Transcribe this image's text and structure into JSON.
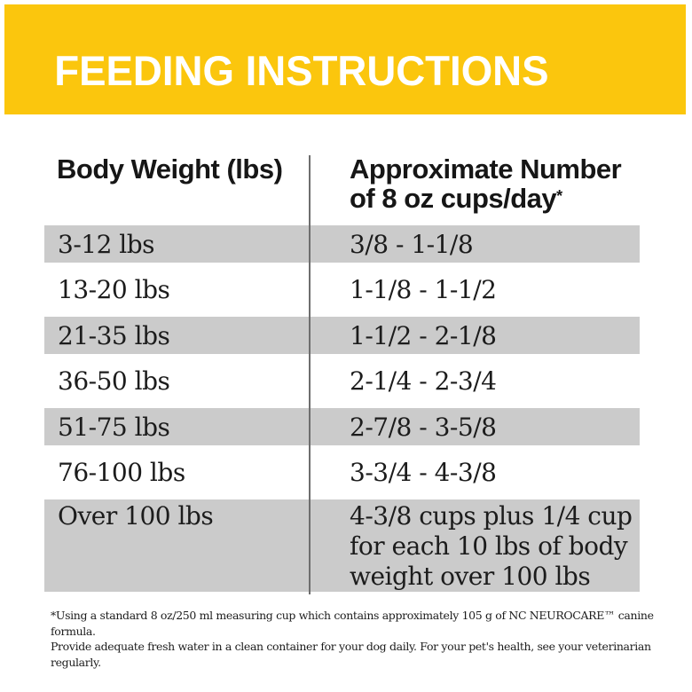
{
  "banner": {
    "title": "FEEDING INSTRUCTIONS",
    "background": "#FBC60D",
    "text_color": "#FFFFFF"
  },
  "table": {
    "header": {
      "left": "Body Weight (lbs)",
      "right_line1": "Approximate Number",
      "right_line2": "of 8 oz cups/day",
      "footnote_marker": "*"
    },
    "columns": [
      "Body Weight (lbs)",
      "Approximate Number of 8 oz cups/day*"
    ],
    "rows": [
      {
        "weight": "3-12 lbs",
        "cups": "3/8 - 1-1/8",
        "shaded": true
      },
      {
        "weight": "13-20 lbs",
        "cups": "1-1/8 - 1-1/2",
        "shaded": false
      },
      {
        "weight": "21-35 lbs",
        "cups": "1-1/2 - 2-1/8",
        "shaded": true
      },
      {
        "weight": "36-50 lbs",
        "cups": "2-1/4 - 2-3/4",
        "shaded": false
      },
      {
        "weight": "51-75 lbs",
        "cups": "2-7/8 - 3-5/8",
        "shaded": true
      },
      {
        "weight": "76-100 lbs",
        "cups": "3-3/4 - 4-3/8",
        "shaded": false
      },
      {
        "weight": "Over 100 lbs",
        "cups": "4-3/8 cups plus 1/4 cup\nfor each 10 lbs of body\nweight over 100 lbs",
        "shaded": true
      }
    ],
    "shaded_row_color": "#CBCBCB",
    "divider_color": "#6E6E6E"
  },
  "footnote": {
    "text": "*Using a standard 8 oz/250 ml measuring cup which contains approximately 105 g of NC NEUROCARE™ canine formula.\nProvide adequate fresh water in a clean container for your dog daily. For your pet's health, see your veterinarian regularly."
  }
}
